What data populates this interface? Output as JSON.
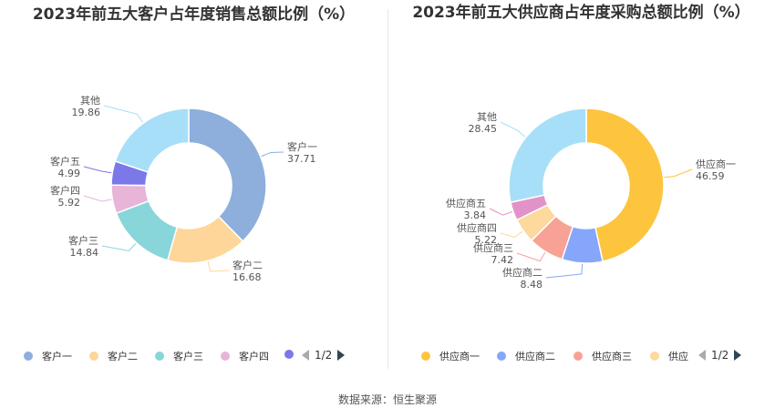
{
  "source": "数据来源：恒生聚源",
  "chart_data": [
    {
      "type": "pie",
      "title": "2023年前五大客户占年度销售总额比例（%）",
      "labels": [
        "客户一",
        "客户二",
        "客户三",
        "客户四",
        "客户五",
        "其他"
      ],
      "values": [
        37.71,
        16.68,
        14.84,
        5.92,
        4.99,
        19.86
      ],
      "colors": [
        "#8eaedb",
        "#fed699",
        "#88d6d9",
        "#e8b4d8",
        "#7b78ea",
        "#a8dff8"
      ],
      "legend": [
        "客户一",
        "客户二",
        "客户三",
        "客户四"
      ],
      "legend_position": "bottom",
      "page": "1/2"
    },
    {
      "type": "pie",
      "title": "2023年前五大供应商占年度采购总额比例（%）",
      "labels": [
        "供应商一",
        "供应商二",
        "供应商三",
        "供应商四",
        "供应商五",
        "其他"
      ],
      "values": [
        46.59,
        8.48,
        7.42,
        5.22,
        3.84,
        28.45
      ],
      "colors": [
        "#fdc43e",
        "#85a6fb",
        "#f8a195",
        "#fdd99e",
        "#e392c9",
        "#a8dff8"
      ],
      "legend": [
        "供应商一",
        "供应商二",
        "供应商三",
        "供应"
      ],
      "legend_position": "bottom",
      "page": "1/2"
    }
  ]
}
